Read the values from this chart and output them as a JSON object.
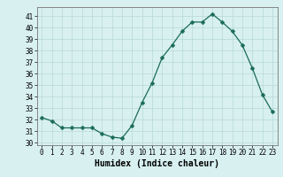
{
  "x": [
    0,
    1,
    2,
    3,
    4,
    5,
    6,
    7,
    8,
    9,
    10,
    11,
    12,
    13,
    14,
    15,
    16,
    17,
    18,
    19,
    20,
    21,
    22,
    23
  ],
  "y": [
    32.2,
    31.9,
    31.3,
    31.3,
    31.3,
    31.3,
    30.8,
    30.5,
    30.4,
    31.5,
    33.5,
    35.2,
    37.4,
    38.5,
    39.7,
    40.5,
    40.5,
    41.2,
    40.5,
    39.7,
    38.5,
    36.5,
    34.2,
    32.7
  ],
  "line_color": "#1a6b5a",
  "marker": "D",
  "marker_size": 2.5,
  "bg_color": "#d8f0f0",
  "grid_color": "#b8d8d8",
  "xlabel": "Humidex (Indice chaleur)",
  "xlim": [
    -0.5,
    23.5
  ],
  "ylim": [
    29.8,
    41.8
  ],
  "yticks": [
    30,
    31,
    32,
    33,
    34,
    35,
    36,
    37,
    38,
    39,
    40,
    41
  ],
  "xticks": [
    0,
    1,
    2,
    3,
    4,
    5,
    6,
    7,
    8,
    9,
    10,
    11,
    12,
    13,
    14,
    15,
    16,
    17,
    18,
    19,
    20,
    21,
    22,
    23
  ],
  "tick_fontsize": 5.5,
  "xlabel_fontsize": 7.0
}
